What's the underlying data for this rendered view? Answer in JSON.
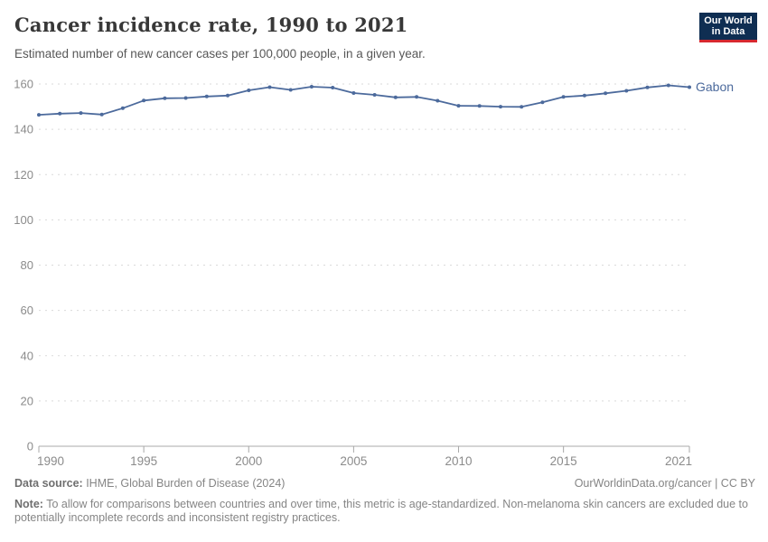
{
  "header": {
    "title": "Cancer incidence rate, 1990 to 2021",
    "subtitle": "Estimated number of new cancer cases per 100,000 people, in a given year."
  },
  "logo": {
    "line1": "Our World",
    "line2": "in Data",
    "bg_color": "#0f2e52",
    "accent_color": "#d7282f"
  },
  "chart_data": {
    "type": "line",
    "title": "Cancer incidence rate, 1990 to 2021",
    "xlabel": "",
    "ylabel": "",
    "x": [
      1990,
      1991,
      1992,
      1993,
      1994,
      1995,
      1996,
      1997,
      1998,
      1999,
      2000,
      2001,
      2002,
      2003,
      2004,
      2005,
      2006,
      2007,
      2008,
      2009,
      2010,
      2011,
      2012,
      2013,
      2014,
      2015,
      2016,
      2017,
      2018,
      2019,
      2020,
      2021
    ],
    "series": [
      {
        "name": "Gabon",
        "color": "#4C6A9C",
        "values": [
          146.4,
          146.9,
          147.2,
          146.5,
          149.3,
          152.7,
          153.7,
          153.8,
          154.5,
          154.9,
          157.2,
          158.6,
          157.4,
          158.8,
          158.4,
          156.0,
          155.2,
          154.1,
          154.3,
          152.6,
          150.4,
          150.3,
          150.0,
          149.9,
          151.9,
          154.3,
          154.9,
          155.9,
          157.0,
          158.5,
          159.4,
          158.6
        ]
      }
    ],
    "ylim": [
      0,
      160
    ],
    "yticks": [
      0,
      20,
      40,
      60,
      80,
      100,
      120,
      140,
      160
    ],
    "xticks": [
      1990,
      1995,
      2000,
      2005,
      2010,
      2015,
      2021
    ],
    "grid": "horizontal-dashed",
    "legend": "end-of-line-label",
    "marker": "dot",
    "axis_color": "#a8a8a8",
    "grid_color": "#dadada",
    "tick_label_color": "#8b8b8b"
  },
  "footer": {
    "source_prefix": "Data source:",
    "source_text": " IHME, Global Burden of Disease (2024)",
    "link": "OurWorldinData.org/cancer | CC BY",
    "note_prefix": "Note:",
    "note_text": " To allow for comparisons between countries and over time, this metric is age-standardized. Non-melanoma skin cancers are excluded due to potentially incomplete records and inconsistent registry practices."
  }
}
